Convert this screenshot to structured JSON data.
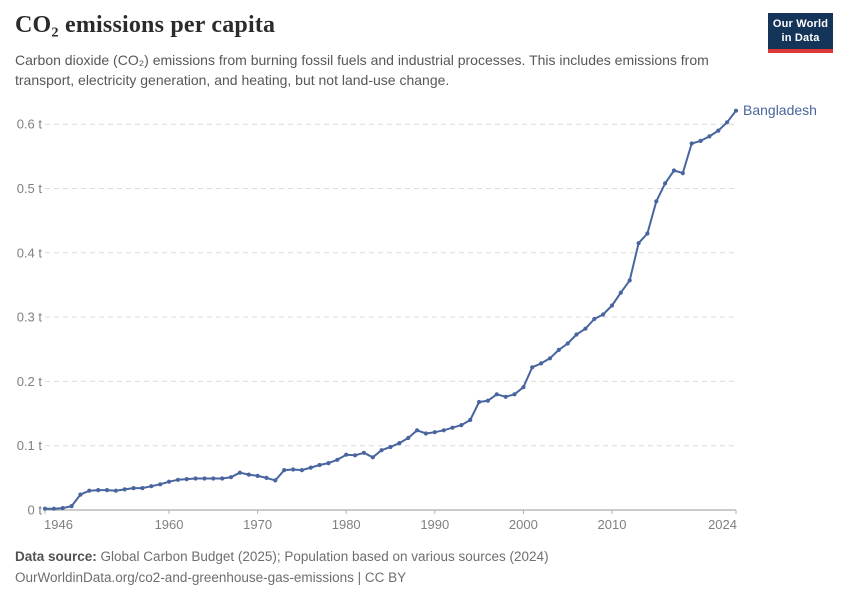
{
  "header": {
    "title": "CO₂ emissions per capita",
    "subtitle": "Carbon dioxide (CO₂) emissions from burning fossil fuels and industrial processes. This includes emissions from transport, electricity generation, and heating, but not land-use change."
  },
  "logo": {
    "line1": "Our World",
    "line2": "in Data"
  },
  "chart_data": {
    "type": "line",
    "title": "CO₂ emissions per capita",
    "entity_label": "Bangladesh",
    "unit": "t",
    "x": [
      1946,
      1947,
      1948,
      1949,
      1950,
      1951,
      1952,
      1953,
      1954,
      1955,
      1956,
      1957,
      1958,
      1959,
      1960,
      1961,
      1962,
      1963,
      1964,
      1965,
      1966,
      1967,
      1968,
      1969,
      1970,
      1971,
      1972,
      1973,
      1974,
      1975,
      1976,
      1977,
      1978,
      1979,
      1980,
      1981,
      1982,
      1983,
      1984,
      1985,
      1986,
      1987,
      1988,
      1989,
      1990,
      1991,
      1992,
      1993,
      1994,
      1995,
      1996,
      1997,
      1998,
      1999,
      2000,
      2001,
      2002,
      2003,
      2004,
      2005,
      2006,
      2007,
      2008,
      2009,
      2010,
      2011,
      2012,
      2013,
      2014,
      2015,
      2016,
      2017,
      2018,
      2019,
      2020,
      2021,
      2022,
      2023,
      2024
    ],
    "values": [
      0.002,
      0.002,
      0.003,
      0.006,
      0.024,
      0.03,
      0.031,
      0.031,
      0.03,
      0.032,
      0.034,
      0.034,
      0.037,
      0.04,
      0.044,
      0.047,
      0.048,
      0.049,
      0.049,
      0.049,
      0.049,
      0.051,
      0.058,
      0.055,
      0.053,
      0.05,
      0.046,
      0.062,
      0.063,
      0.062,
      0.066,
      0.07,
      0.073,
      0.078,
      0.086,
      0.085,
      0.089,
      0.082,
      0.093,
      0.098,
      0.104,
      0.112,
      0.124,
      0.119,
      0.121,
      0.124,
      0.128,
      0.132,
      0.14,
      0.168,
      0.17,
      0.18,
      0.176,
      0.18,
      0.191,
      0.222,
      0.228,
      0.236,
      0.249,
      0.259,
      0.273,
      0.282,
      0.297,
      0.304,
      0.318,
      0.338,
      0.357,
      0.415,
      0.43,
      0.48,
      0.508,
      0.528,
      0.524,
      0.57,
      0.574,
      0.581,
      0.59,
      0.603,
      0.621
    ],
    "x_ticks": [
      1946,
      1960,
      1970,
      1980,
      1990,
      2000,
      2010,
      2024
    ],
    "y_ticks": [
      {
        "value": 0.0,
        "label": "0 t"
      },
      {
        "value": 0.1,
        "label": "0.1 t"
      },
      {
        "value": 0.2,
        "label": "0.2 t"
      },
      {
        "value": 0.3,
        "label": "0.3 t"
      },
      {
        "value": 0.4,
        "label": "0.4 t"
      },
      {
        "value": 0.5,
        "label": "0.5 t"
      },
      {
        "value": 0.6,
        "label": "0.6 t"
      }
    ],
    "xlim": [
      1946,
      2024
    ],
    "ylim": [
      0,
      0.65
    ],
    "grid": "horizontal-dashed",
    "legend": "end-of-line-label",
    "colors": {
      "line": "#49659f",
      "entity_label": "#49659f",
      "grid": "#dcdcdc",
      "axis": "#9a9a9a",
      "tick_label": "#808080"
    }
  },
  "footer": {
    "source_label": "Data source:",
    "source": " Global Carbon Budget (2025); Population based on various sources (2024)",
    "note": "OurWorldinData.org/co2-and-greenhouse-gas-emissions | CC BY"
  }
}
